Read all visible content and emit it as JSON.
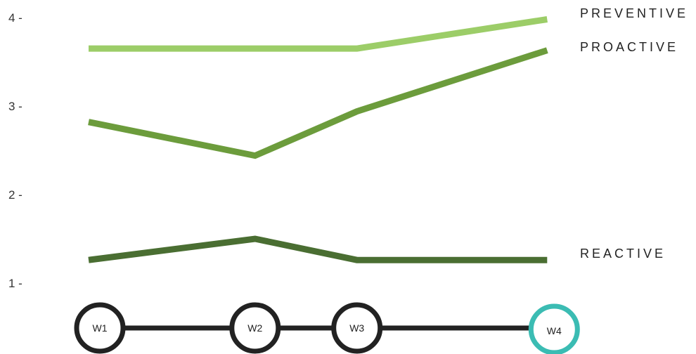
{
  "chart_data": {
    "type": "line",
    "title": "",
    "xlabel": "",
    "ylabel": "",
    "ylim": [
      0.75,
      4.2
    ],
    "y_ticks": [
      {
        "value": 1,
        "label": "1 -"
      },
      {
        "value": 2,
        "label": "2 -"
      },
      {
        "value": 3,
        "label": "3 -"
      },
      {
        "value": 4,
        "label": "4 -"
      }
    ],
    "x": [
      "W1",
      "W2",
      "W3",
      "W4"
    ],
    "x_position_index": [
      0,
      0.96,
      1.59,
      2.81
    ],
    "highlighted_week": "W4",
    "series": [
      {
        "name": "PREVENTIVE",
        "values": [
          3.65,
          3.65,
          3.65,
          3.98
        ],
        "color": "#9ccd68"
      },
      {
        "name": "PROACTIVE",
        "values": [
          2.82,
          2.44,
          2.94,
          3.63
        ],
        "color": "#6c9c3c"
      },
      {
        "name": "REACTIVE",
        "values": [
          1.26,
          1.5,
          1.26,
          1.26
        ],
        "color": "#4a6e32"
      }
    ],
    "grid": false,
    "legend": "inline-right",
    "timeline_color": "#222222",
    "highlight_color": "#3bbcb3"
  }
}
